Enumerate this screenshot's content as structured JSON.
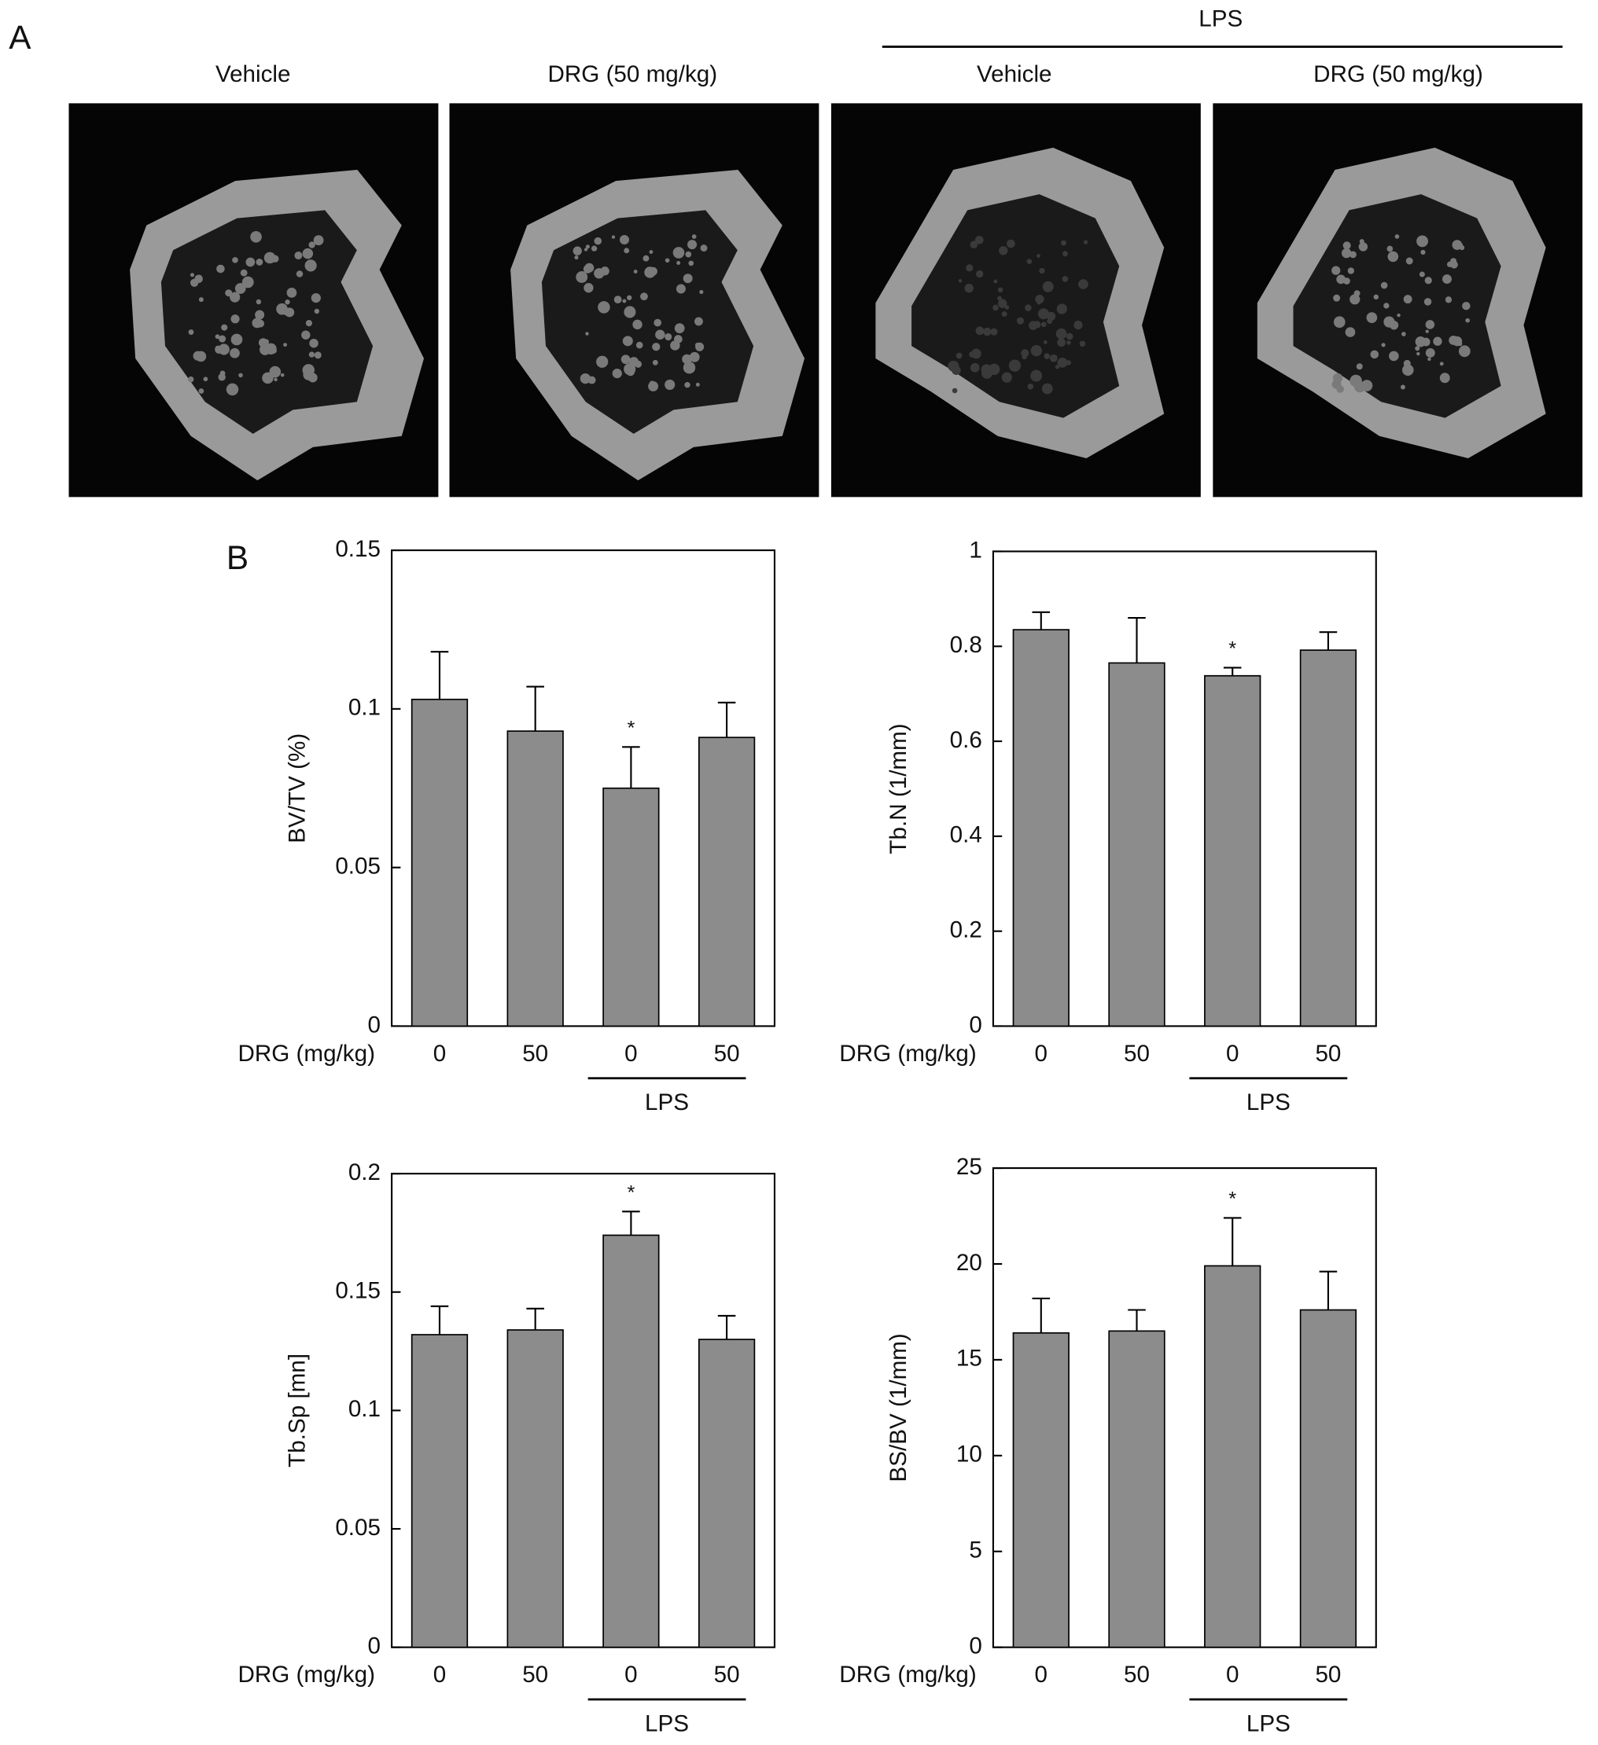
{
  "panel_a": {
    "label": "A",
    "group_label": "LPS",
    "columns": [
      "Vehicle",
      "DRG (50 mg/kg)",
      "Vehicle",
      "DRG (50 mg/kg)"
    ]
  },
  "panel_b": {
    "label": "B"
  },
  "chart_data": [
    {
      "type": "bar",
      "ylabel": "BV/TV (%)",
      "xlabel": "DRG (mg/kg)",
      "group_label": "LPS",
      "categories": [
        "0",
        "50",
        "0",
        "50"
      ],
      "values": [
        0.103,
        0.093,
        0.075,
        0.091
      ],
      "errors": [
        0.015,
        0.014,
        0.013,
        0.011
      ],
      "annotations": [
        null,
        null,
        "*",
        null
      ],
      "color": "#8c8c8c",
      "ylim": [
        0,
        0.15
      ],
      "yticks": [
        0,
        0.05,
        0.1,
        0.15
      ]
    },
    {
      "type": "bar",
      "ylabel": "Tb.N (1/mm)",
      "xlabel": "DRG (mg/kg)",
      "group_label": "LPS",
      "categories": [
        "0",
        "50",
        "0",
        "50"
      ],
      "values": [
        0.835,
        0.765,
        0.738,
        0.792
      ],
      "errors": [
        0.037,
        0.095,
        0.017,
        0.038
      ],
      "annotations": [
        null,
        null,
        "*",
        null
      ],
      "color": "#8c8c8c",
      "ylim": [
        0,
        1
      ],
      "yticks": [
        0,
        0.2,
        0.4,
        0.6,
        0.8,
        1
      ]
    },
    {
      "type": "bar",
      "ylabel": "Tb.Sp [mn]",
      "xlabel": "DRG (mg/kg)",
      "group_label": "LPS",
      "categories": [
        "0",
        "50",
        "0",
        "50"
      ],
      "values": [
        0.132,
        0.134,
        0.174,
        0.13
      ],
      "errors": [
        0.012,
        0.009,
        0.01,
        0.01
      ],
      "annotations": [
        null,
        null,
        "*",
        null
      ],
      "color": "#8c8c8c",
      "ylim": [
        0,
        0.2
      ],
      "yticks": [
        0,
        0.05,
        0.1,
        0.15,
        0.2
      ]
    },
    {
      "type": "bar",
      "ylabel": "BS/BV (1/mm)",
      "xlabel": "DRG (mg/kg)",
      "group_label": "LPS",
      "categories": [
        "0",
        "50",
        "0",
        "50"
      ],
      "values": [
        16.4,
        16.5,
        19.9,
        17.6
      ],
      "errors": [
        1.8,
        1.1,
        2.5,
        2.0
      ],
      "annotations": [
        null,
        null,
        "*",
        null
      ],
      "color": "#8c8c8c",
      "ylim": [
        0,
        25
      ],
      "yticks": [
        0,
        5,
        10,
        15,
        20,
        25
      ]
    }
  ]
}
